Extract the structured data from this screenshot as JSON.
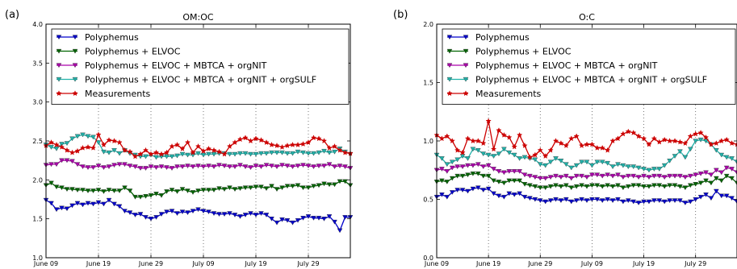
{
  "chart_data": [
    {
      "type": "line",
      "panel_label": "(a)",
      "title": "OM:OC",
      "xlabel": "",
      "ylabel": "",
      "ylim": [
        1.0,
        4.0
      ],
      "yticks": [
        "1.0",
        "1.5",
        "2.0",
        "2.5",
        "3.0",
        "3.5",
        "4.0"
      ],
      "xticks": [
        "June 09",
        "June 19",
        "June 29",
        "July 09",
        "July 19",
        "July 29"
      ],
      "grid": "x-dotted",
      "legend_position": "top-left",
      "series": [
        {
          "name": "Polyphemus",
          "color": "#0000cc",
          "marker": "triangle-down",
          "values": [
            1.74,
            1.7,
            1.62,
            1.64,
            1.63,
            1.67,
            1.7,
            1.68,
            1.7,
            1.69,
            1.71,
            1.69,
            1.74,
            1.69,
            1.66,
            1.6,
            1.58,
            1.55,
            1.56,
            1.52,
            1.5,
            1.52,
            1.56,
            1.59,
            1.6,
            1.57,
            1.59,
            1.58,
            1.6,
            1.62,
            1.6,
            1.59,
            1.57,
            1.56,
            1.56,
            1.57,
            1.55,
            1.53,
            1.55,
            1.57,
            1.55,
            1.57,
            1.55,
            1.5,
            1.45,
            1.49,
            1.48,
            1.45,
            1.48,
            1.51,
            1.53,
            1.51,
            1.51,
            1.5,
            1.53,
            1.46,
            1.35,
            1.52,
            1.52
          ]
        },
        {
          "name": "Polyphemus + ELVOC",
          "color": "#006400",
          "marker": "triangle-down",
          "values": [
            1.93,
            1.96,
            1.91,
            1.9,
            1.88,
            1.88,
            1.87,
            1.87,
            1.86,
            1.86,
            1.87,
            1.85,
            1.87,
            1.86,
            1.86,
            1.9,
            1.86,
            1.78,
            1.78,
            1.79,
            1.8,
            1.82,
            1.8,
            1.85,
            1.87,
            1.85,
            1.88,
            1.86,
            1.84,
            1.86,
            1.87,
            1.87,
            1.87,
            1.89,
            1.88,
            1.9,
            1.88,
            1.89,
            1.9,
            1.9,
            1.91,
            1.91,
            1.89,
            1.92,
            1.88,
            1.9,
            1.92,
            1.92,
            1.93,
            1.9,
            1.9,
            1.92,
            1.93,
            1.95,
            1.94,
            1.94,
            1.98,
            1.98,
            1.93
          ]
        },
        {
          "name": "Polyphemus + ELVOC + MBTCA + orgNIT",
          "color": "#aa00aa",
          "marker": "triangle-down",
          "values": [
            2.19,
            2.2,
            2.2,
            2.25,
            2.25,
            2.24,
            2.2,
            2.17,
            2.16,
            2.16,
            2.18,
            2.16,
            2.17,
            2.19,
            2.2,
            2.2,
            2.18,
            2.17,
            2.15,
            2.15,
            2.17,
            2.16,
            2.17,
            2.16,
            2.15,
            2.17,
            2.17,
            2.18,
            2.17,
            2.18,
            2.17,
            2.18,
            2.17,
            2.19,
            2.18,
            2.17,
            2.17,
            2.19,
            2.17,
            2.16,
            2.18,
            2.17,
            2.19,
            2.18,
            2.17,
            2.19,
            2.18,
            2.17,
            2.18,
            2.19,
            2.18,
            2.17,
            2.18,
            2.18,
            2.2,
            2.17,
            2.18,
            2.17,
            2.15
          ]
        },
        {
          "name": "Polyphemus + ELVOC + MBTCA + orgNIT + orgSULF",
          "color": "#20b2aa",
          "marker": "triangle-down",
          "values": [
            2.45,
            2.42,
            2.4,
            2.46,
            2.47,
            2.53,
            2.56,
            2.58,
            2.56,
            2.55,
            2.48,
            2.36,
            2.35,
            2.38,
            2.34,
            2.38,
            2.34,
            2.32,
            2.3,
            2.3,
            2.32,
            2.29,
            2.3,
            2.3,
            2.3,
            2.31,
            2.33,
            2.32,
            2.32,
            2.34,
            2.32,
            2.33,
            2.33,
            2.34,
            2.34,
            2.33,
            2.33,
            2.34,
            2.34,
            2.33,
            2.33,
            2.34,
            2.34,
            2.35,
            2.35,
            2.35,
            2.34,
            2.34,
            2.36,
            2.35,
            2.34,
            2.34,
            2.35,
            2.37,
            2.35,
            2.36,
            2.4,
            2.36,
            2.33
          ]
        },
        {
          "name": "Measurements",
          "color": "#cc0000",
          "marker": "star",
          "values": [
            2.44,
            2.48,
            2.45,
            2.42,
            2.38,
            2.35,
            2.37,
            2.41,
            2.42,
            2.41,
            2.58,
            2.45,
            2.51,
            2.5,
            2.48,
            2.38,
            2.36,
            2.3,
            2.33,
            2.38,
            2.33,
            2.35,
            2.33,
            2.35,
            2.43,
            2.45,
            2.4,
            2.48,
            2.35,
            2.43,
            2.37,
            2.4,
            2.38,
            2.36,
            2.33,
            2.43,
            2.48,
            2.52,
            2.54,
            2.5,
            2.53,
            2.51,
            2.48,
            2.45,
            2.44,
            2.42,
            2.44,
            2.45,
            2.45,
            2.46,
            2.48,
            2.54,
            2.53,
            2.5,
            2.41,
            2.43,
            2.38,
            2.35,
            2.34
          ]
        }
      ]
    },
    {
      "type": "line",
      "panel_label": "(b)",
      "title": "O:C",
      "xlabel": "",
      "ylabel": "",
      "ylim": [
        0.0,
        2.0
      ],
      "yticks": [
        "0.0",
        "0.5",
        "1.0",
        "1.5",
        "2.0"
      ],
      "xticks": [
        "June 09",
        "June 19",
        "June 29",
        "July 09",
        "July 19",
        "July 29"
      ],
      "grid": "x-dotted",
      "legend_position": "top-left",
      "series": [
        {
          "name": "Polyphemus",
          "color": "#0000cc",
          "marker": "triangle-down",
          "values": [
            0.52,
            0.54,
            0.52,
            0.56,
            0.58,
            0.58,
            0.57,
            0.59,
            0.6,
            0.58,
            0.59,
            0.55,
            0.53,
            0.52,
            0.55,
            0.54,
            0.55,
            0.52,
            0.51,
            0.5,
            0.49,
            0.48,
            0.49,
            0.5,
            0.49,
            0.5,
            0.48,
            0.49,
            0.5,
            0.49,
            0.5,
            0.5,
            0.49,
            0.5,
            0.49,
            0.5,
            0.48,
            0.49,
            0.48,
            0.47,
            0.48,
            0.48,
            0.49,
            0.49,
            0.48,
            0.49,
            0.49,
            0.49,
            0.47,
            0.48,
            0.5,
            0.52,
            0.54,
            0.51,
            0.57,
            0.53,
            0.53,
            0.51,
            0.48
          ]
        },
        {
          "name": "Polyphemus + ELVOC",
          "color": "#006400",
          "marker": "triangle-down",
          "values": [
            0.65,
            0.66,
            0.65,
            0.68,
            0.7,
            0.7,
            0.71,
            0.72,
            0.72,
            0.7,
            0.7,
            0.66,
            0.65,
            0.64,
            0.66,
            0.66,
            0.66,
            0.63,
            0.62,
            0.61,
            0.6,
            0.6,
            0.61,
            0.62,
            0.61,
            0.62,
            0.6,
            0.61,
            0.62,
            0.61,
            0.62,
            0.62,
            0.61,
            0.62,
            0.61,
            0.62,
            0.6,
            0.61,
            0.62,
            0.62,
            0.61,
            0.61,
            0.62,
            0.62,
            0.61,
            0.62,
            0.62,
            0.61,
            0.6,
            0.62,
            0.63,
            0.64,
            0.66,
            0.64,
            0.68,
            0.66,
            0.7,
            0.68,
            0.64
          ]
        },
        {
          "name": "Polyphemus + ELVOC + MBTCA + orgNIT",
          "color": "#aa00aa",
          "marker": "triangle-down",
          "values": [
            0.75,
            0.76,
            0.74,
            0.77,
            0.78,
            0.78,
            0.79,
            0.79,
            0.8,
            0.78,
            0.79,
            0.76,
            0.74,
            0.73,
            0.74,
            0.74,
            0.74,
            0.71,
            0.7,
            0.69,
            0.68,
            0.68,
            0.69,
            0.7,
            0.69,
            0.7,
            0.68,
            0.7,
            0.7,
            0.69,
            0.71,
            0.71,
            0.7,
            0.71,
            0.7,
            0.71,
            0.69,
            0.7,
            0.7,
            0.69,
            0.7,
            0.69,
            0.7,
            0.7,
            0.69,
            0.7,
            0.7,
            0.7,
            0.69,
            0.7,
            0.71,
            0.72,
            0.73,
            0.71,
            0.75,
            0.73,
            0.77,
            0.76,
            0.73
          ]
        },
        {
          "name": "Polyphemus + ELVOC + MBTCA + orgNIT + orgSULF",
          "color": "#20b2aa",
          "marker": "triangle-down",
          "values": [
            0.88,
            0.85,
            0.8,
            0.82,
            0.84,
            0.87,
            0.85,
            0.93,
            0.92,
            0.89,
            0.88,
            0.87,
            0.89,
            0.93,
            0.9,
            0.88,
            0.85,
            0.86,
            0.85,
            0.84,
            0.8,
            0.79,
            0.82,
            0.85,
            0.83,
            0.8,
            0.77,
            0.79,
            0.82,
            0.82,
            0.79,
            0.82,
            0.82,
            0.81,
            0.78,
            0.8,
            0.79,
            0.78,
            0.78,
            0.77,
            0.76,
            0.75,
            0.76,
            0.76,
            0.79,
            0.83,
            0.87,
            0.91,
            0.86,
            0.93,
            1.0,
            1.01,
            1.0,
            0.97,
            0.92,
            0.88,
            0.86,
            0.85,
            0.82
          ]
        },
        {
          "name": "Measurements",
          "color": "#cc0000",
          "marker": "star",
          "values": [
            1.05,
            1.02,
            1.04,
            1.0,
            0.92,
            0.9,
            1.02,
            1.0,
            1.0,
            0.98,
            1.17,
            0.93,
            1.09,
            1.05,
            1.03,
            0.95,
            1.05,
            0.96,
            0.86,
            0.88,
            0.92,
            0.87,
            0.92,
            1.0,
            0.98,
            0.96,
            1.02,
            1.04,
            0.96,
            0.97,
            0.97,
            0.94,
            0.94,
            0.92,
            1.0,
            1.02,
            1.06,
            1.08,
            1.07,
            1.04,
            1.02,
            0.97,
            1.02,
            0.99,
            1.01,
            1.0,
            1.0,
            0.99,
            0.98,
            1.04,
            1.06,
            1.07,
            1.03,
            0.97,
            0.98,
            1.0,
            1.01,
            0.98,
            0.97
          ]
        }
      ]
    }
  ]
}
